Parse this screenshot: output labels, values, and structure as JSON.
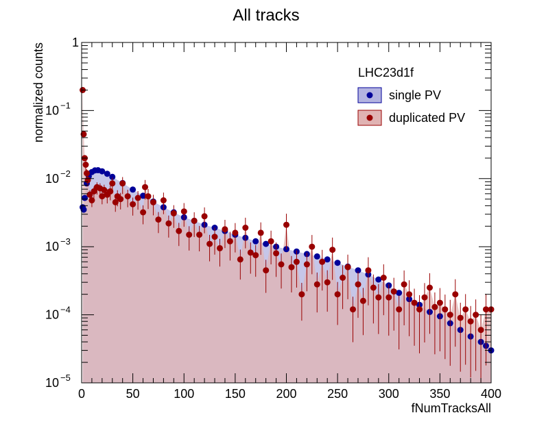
{
  "chart_data": {
    "type": "scatter",
    "title": "All tracks",
    "xlabel": "fNumTracksAll",
    "ylabel": "normalized counts",
    "xlim": [
      0,
      400
    ],
    "ylim": [
      1e-05,
      1
    ],
    "yscale": "log",
    "grid": false,
    "legend": {
      "title": "LHC23d1f",
      "placement": "top-right"
    },
    "x_ticks": [
      {
        "value": 0,
        "label": "0"
      },
      {
        "value": 50,
        "label": "50"
      },
      {
        "value": 100,
        "label": "100"
      },
      {
        "value": 150,
        "label": "150"
      },
      {
        "value": 200,
        "label": "200"
      },
      {
        "value": 250,
        "label": "250"
      },
      {
        "value": 300,
        "label": "300"
      },
      {
        "value": 350,
        "label": "350"
      },
      {
        "value": 400,
        "label": "400"
      }
    ],
    "y_ticks": [
      {
        "value": 1e-05,
        "base": "10",
        "exp": "−5"
      },
      {
        "value": 0.0001,
        "base": "10",
        "exp": "−4"
      },
      {
        "value": 0.001,
        "base": "10",
        "exp": "−3"
      },
      {
        "value": 0.01,
        "base": "10",
        "exp": "−2"
      },
      {
        "value": 0.1,
        "base": "10",
        "exp": "−1"
      },
      {
        "value": 1,
        "base": "1",
        "exp": ""
      }
    ],
    "series": [
      {
        "name": "single PV",
        "color": "#000099",
        "fill": "#b3b3e0",
        "x": [
          1,
          2,
          3,
          5,
          7,
          10,
          13,
          16,
          20,
          25,
          30,
          40,
          50,
          60,
          70,
          80,
          90,
          100,
          110,
          120,
          130,
          140,
          150,
          160,
          170,
          180,
          190,
          200,
          210,
          220,
          230,
          240,
          250,
          260,
          270,
          280,
          290,
          300,
          310,
          320,
          330,
          340,
          350,
          360,
          370,
          380,
          390,
          395,
          400
        ],
        "y": [
          0.0038,
          0.0035,
          0.0052,
          0.0085,
          0.0108,
          0.0125,
          0.0132,
          0.0133,
          0.0128,
          0.0118,
          0.0106,
          0.0086,
          0.0069,
          0.0056,
          0.0046,
          0.0038,
          0.0032,
          0.0027,
          0.0024,
          0.0021,
          0.0019,
          0.0017,
          0.0015,
          0.00135,
          0.0012,
          0.0011,
          0.001,
          0.00092,
          0.00085,
          0.00078,
          0.00072,
          0.00065,
          0.00058,
          0.00051,
          0.00045,
          0.00039,
          0.00033,
          0.00027,
          0.00021,
          0.00017,
          0.00014,
          0.00011,
          9.5e-05,
          7.5e-05,
          6e-05,
          4.8e-05,
          4e-05,
          3.5e-05,
          3e-05
        ]
      },
      {
        "name": "duplicated PV",
        "color": "#990000",
        "fill": "#e0b3b3",
        "x": [
          1,
          2,
          3,
          4,
          5,
          6,
          8,
          10,
          12,
          15,
          18,
          20,
          22,
          25,
          28,
          30,
          33,
          35,
          38,
          40,
          45,
          50,
          55,
          60,
          62,
          65,
          70,
          75,
          80,
          85,
          90,
          95,
          100,
          105,
          110,
          115,
          120,
          125,
          130,
          135,
          140,
          145,
          150,
          155,
          160,
          165,
          170,
          175,
          180,
          185,
          190,
          195,
          200,
          205,
          210,
          215,
          220,
          225,
          230,
          235,
          240,
          245,
          250,
          255,
          260,
          265,
          270,
          275,
          280,
          285,
          290,
          295,
          300,
          305,
          310,
          315,
          320,
          325,
          330,
          335,
          340,
          345,
          350,
          355,
          360,
          365,
          370,
          375,
          380,
          385,
          390,
          395,
          400
        ],
        "y": [
          0.2,
          0.045,
          0.02,
          0.016,
          0.012,
          0.0095,
          0.0058,
          0.0048,
          0.0065,
          0.0075,
          0.0072,
          0.0055,
          0.0068,
          0.0058,
          0.0065,
          0.0085,
          0.0045,
          0.0055,
          0.005,
          0.0085,
          0.0055,
          0.0042,
          0.0052,
          0.0032,
          0.0075,
          0.0055,
          0.0045,
          0.0025,
          0.0048,
          0.0022,
          0.0031,
          0.0017,
          0.0033,
          0.0015,
          0.0024,
          0.0015,
          0.0028,
          0.0011,
          0.0014,
          0.00095,
          0.0018,
          0.0012,
          0.0016,
          0.00065,
          0.0019,
          0.00082,
          0.00075,
          0.0016,
          0.00045,
          0.0012,
          0.0008,
          0.00055,
          0.0021,
          0.0005,
          0.0006,
          0.0002,
          0.00055,
          0.001,
          0.00028,
          0.0006,
          0.0003,
          0.0009,
          0.0002,
          0.00035,
          0.0005,
          0.00012,
          0.00028,
          0.00016,
          0.00045,
          0.00025,
          0.00018,
          0.00035,
          0.00018,
          0.00022,
          0.00012,
          0.00028,
          0.0002,
          0.00015,
          0.00012,
          0.00018,
          0.00025,
          0.00013,
          0.00015,
          0.00012,
          0.0001,
          0.0002,
          9e-05,
          0.00012,
          8e-05,
          0.0001,
          6e-05,
          0.00012,
          0.00012
        ]
      }
    ]
  }
}
